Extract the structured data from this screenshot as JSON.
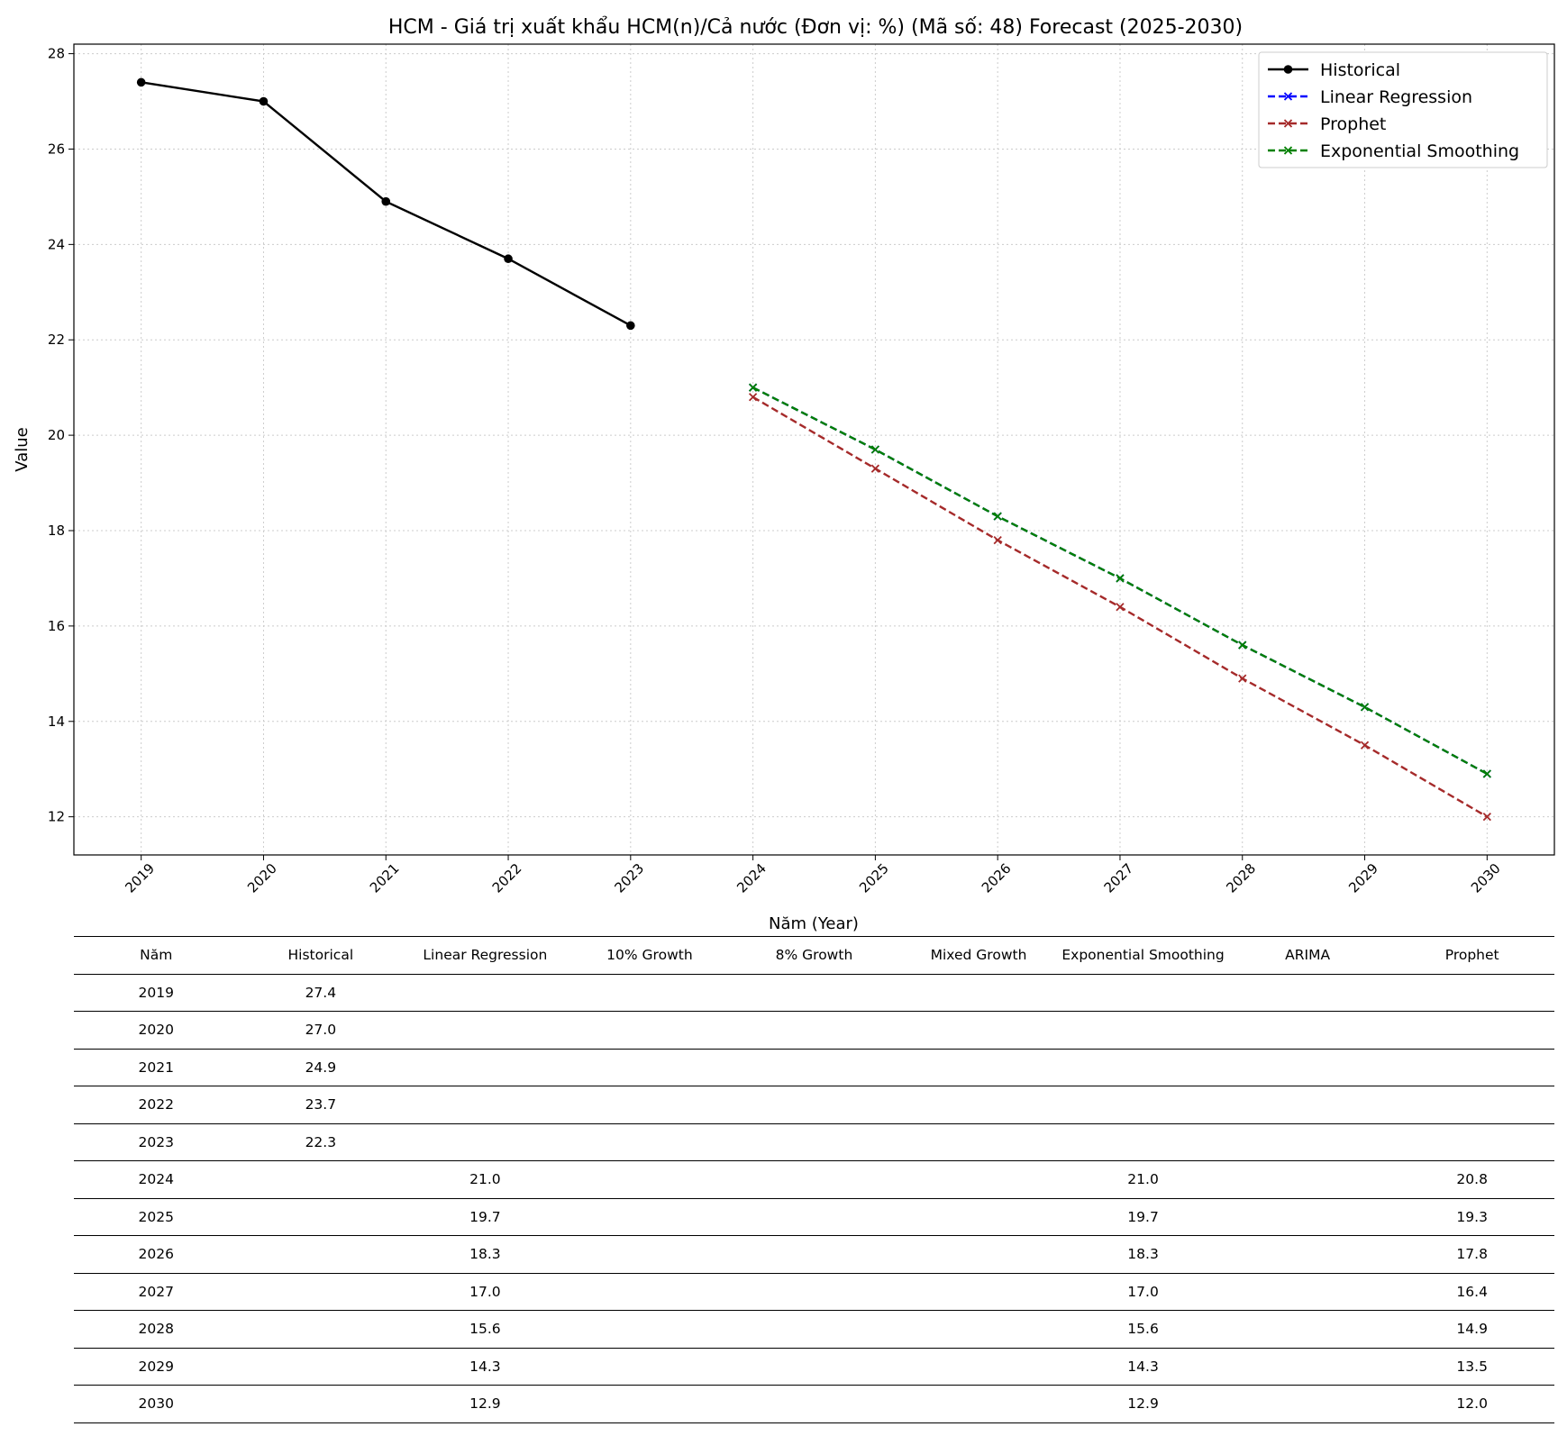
{
  "chart_data": {
    "type": "line",
    "title": "HCM - Giá trị xuất khẩu HCM(n)/Cả nước (Đơn vị: %) (Mã số: 48) Forecast (2025-2030)",
    "xlabel": "Năm (Year)",
    "ylabel": "Value",
    "x": [
      2019,
      2020,
      2021,
      2022,
      2023,
      2024,
      2025,
      2026,
      2027,
      2028,
      2029,
      2030
    ],
    "xlim": [
      2018.45,
      2030.55
    ],
    "ylim": [
      11.2,
      28.2
    ],
    "yticks": [
      12,
      14,
      16,
      18,
      20,
      22,
      24,
      26,
      28
    ],
    "grid": true,
    "legend_position": "top-right",
    "series": [
      {
        "name": "Historical",
        "color": "#000000",
        "style": "solid",
        "marker": "circle",
        "x": [
          2019,
          2020,
          2021,
          2022,
          2023
        ],
        "values": [
          27.4,
          27.0,
          24.9,
          23.7,
          22.3
        ]
      },
      {
        "name": "Linear Regression",
        "color": "#0000ff",
        "style": "dashed",
        "marker": "x",
        "x": [
          2024,
          2025,
          2026,
          2027,
          2028,
          2029,
          2030
        ],
        "values": [
          21.0,
          19.7,
          18.3,
          17.0,
          15.6,
          14.3,
          12.9
        ]
      },
      {
        "name": "Prophet",
        "color": "#a52a2a",
        "style": "dashed",
        "marker": "x",
        "x": [
          2024,
          2025,
          2026,
          2027,
          2028,
          2029,
          2030
        ],
        "values": [
          20.8,
          19.3,
          17.8,
          16.4,
          14.9,
          13.5,
          12.0
        ]
      },
      {
        "name": "Exponential Smoothing",
        "color": "#008000",
        "style": "dashed",
        "marker": "x",
        "x": [
          2024,
          2025,
          2026,
          2027,
          2028,
          2029,
          2030
        ],
        "values": [
          21.0,
          19.7,
          18.3,
          17.0,
          15.6,
          14.3,
          12.9
        ]
      }
    ]
  },
  "table": {
    "headers": [
      "Năm",
      "Historical",
      "Linear Regression",
      "10% Growth",
      "8% Growth",
      "Mixed Growth",
      "Exponential Smoothing",
      "ARIMA",
      "Prophet"
    ],
    "rows": [
      [
        "2019",
        "27.4",
        "",
        "",
        "",
        "",
        "",
        "",
        ""
      ],
      [
        "2020",
        "27.0",
        "",
        "",
        "",
        "",
        "",
        "",
        ""
      ],
      [
        "2021",
        "24.9",
        "",
        "",
        "",
        "",
        "",
        "",
        ""
      ],
      [
        "2022",
        "23.7",
        "",
        "",
        "",
        "",
        "",
        "",
        ""
      ],
      [
        "2023",
        "22.3",
        "",
        "",
        "",
        "",
        "",
        "",
        ""
      ],
      [
        "2024",
        "",
        "21.0",
        "",
        "",
        "",
        "21.0",
        "",
        "20.8"
      ],
      [
        "2025",
        "",
        "19.7",
        "",
        "",
        "",
        "19.7",
        "",
        "19.3"
      ],
      [
        "2026",
        "",
        "18.3",
        "",
        "",
        "",
        "18.3",
        "",
        "17.8"
      ],
      [
        "2027",
        "",
        "17.0",
        "",
        "",
        "",
        "17.0",
        "",
        "16.4"
      ],
      [
        "2028",
        "",
        "15.6",
        "",
        "",
        "",
        "15.6",
        "",
        "14.9"
      ],
      [
        "2029",
        "",
        "14.3",
        "",
        "",
        "",
        "14.3",
        "",
        "13.5"
      ],
      [
        "2030",
        "",
        "12.9",
        "",
        "",
        "",
        "12.9",
        "",
        "12.0"
      ]
    ]
  }
}
